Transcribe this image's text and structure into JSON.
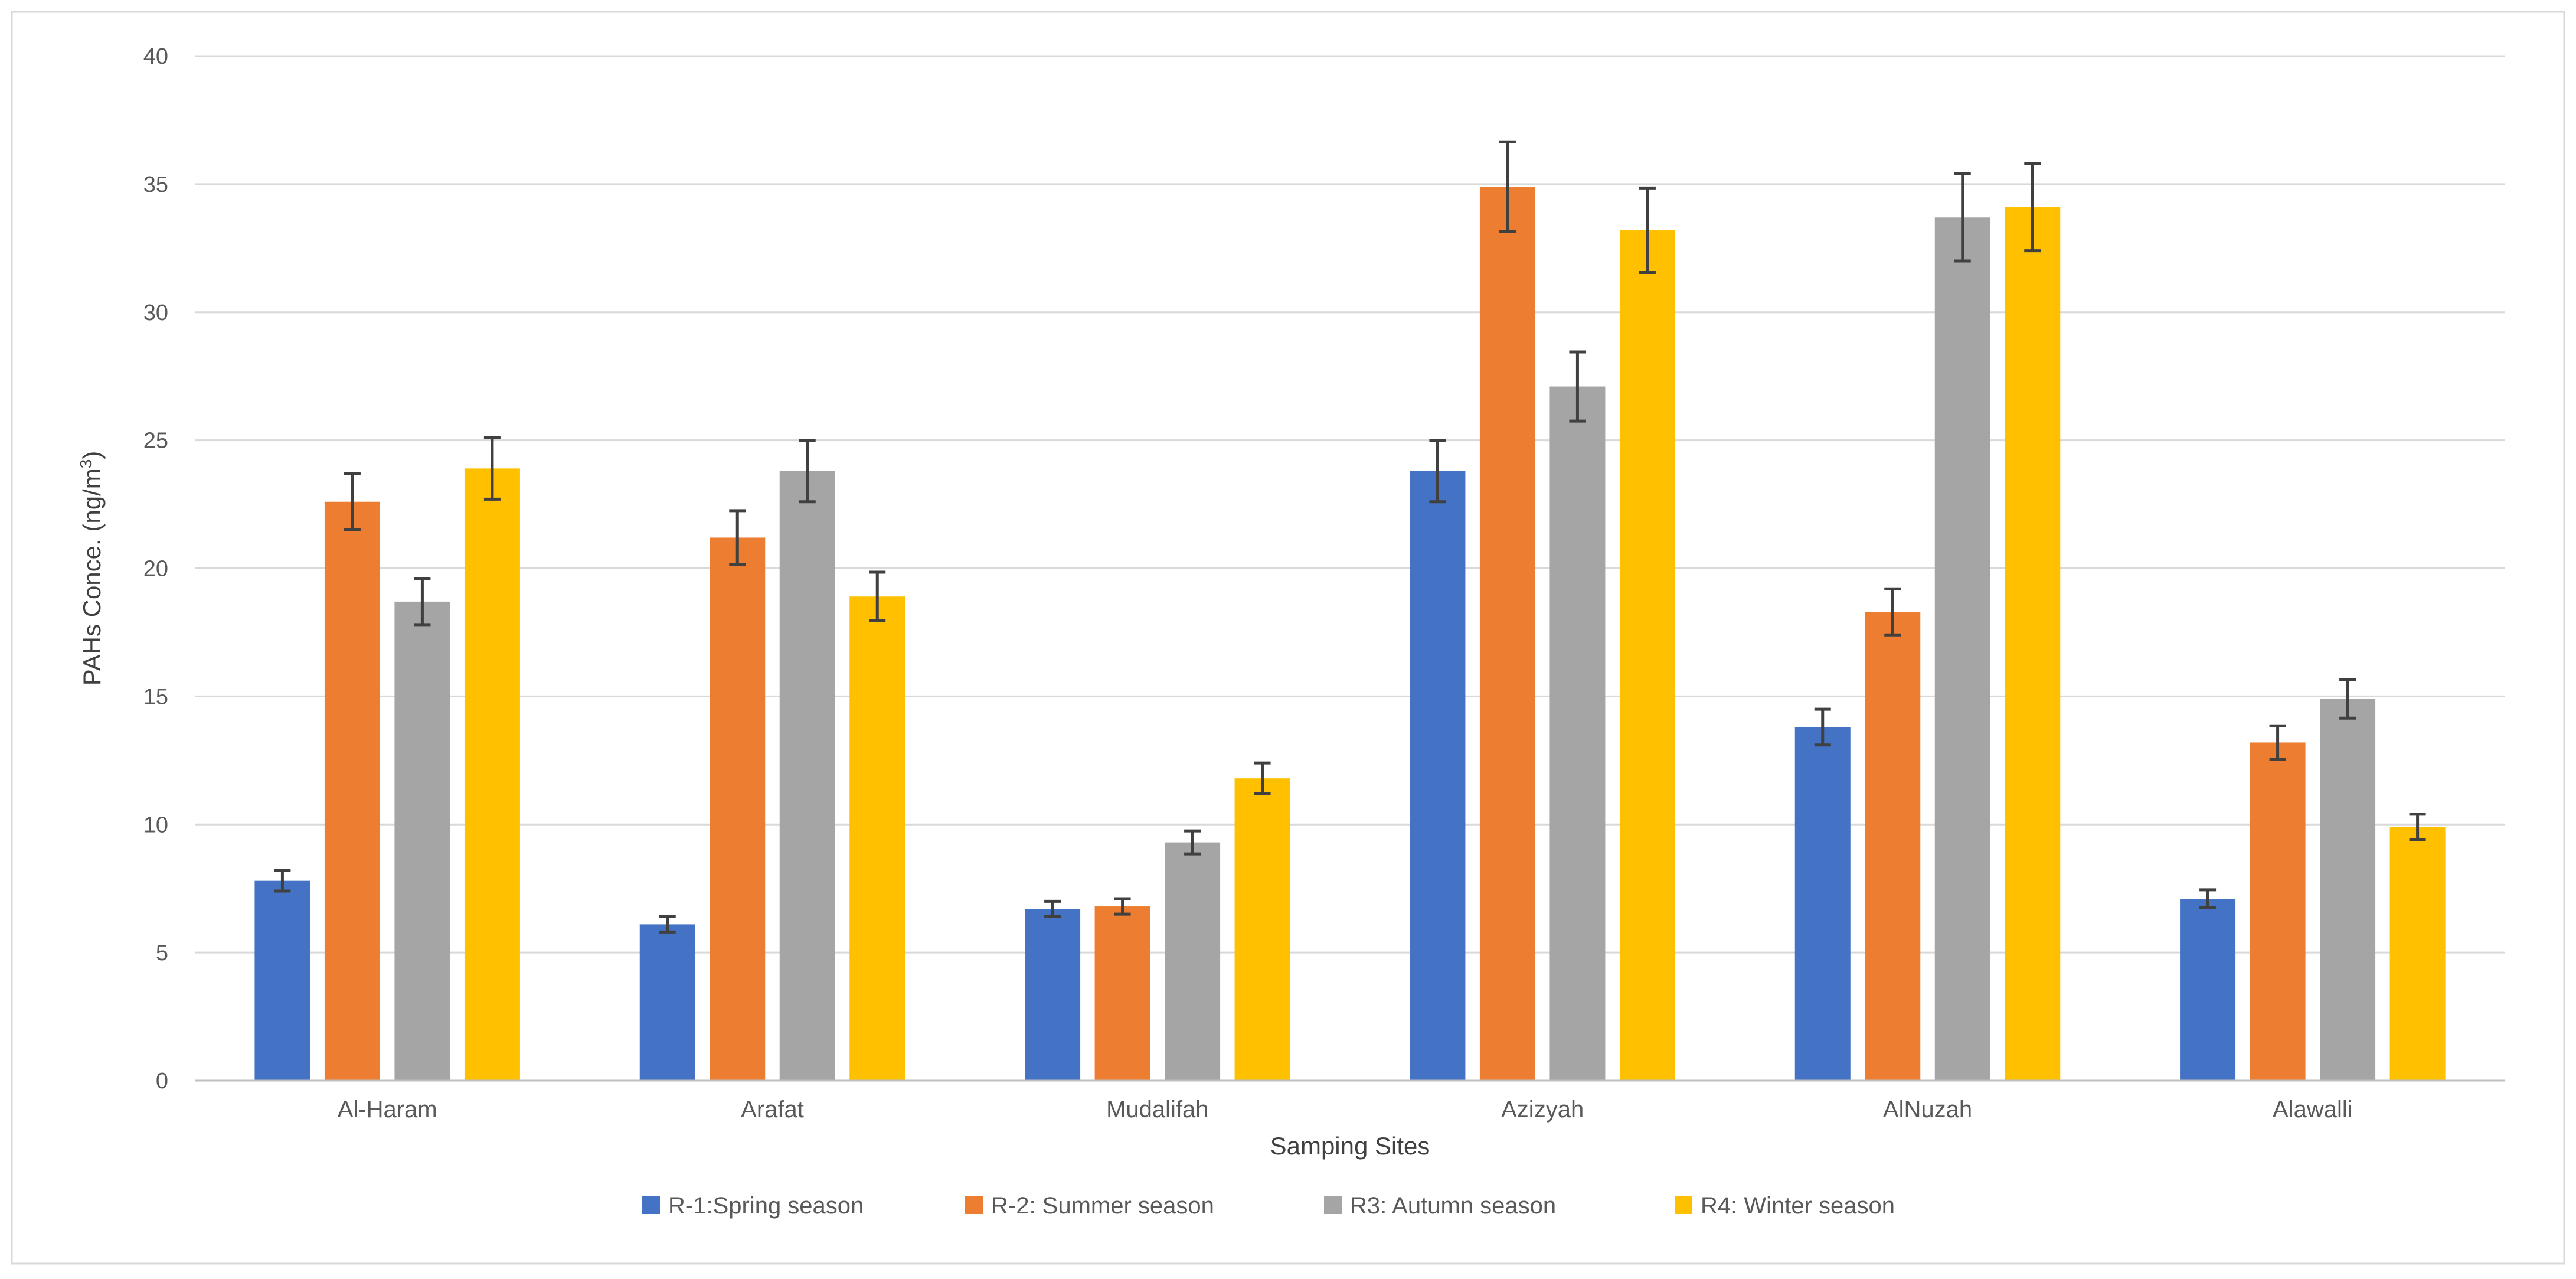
{
  "chart_data": {
    "type": "bar",
    "title": "",
    "xlabel": "Samping Sites",
    "ylabel": "PAHs Conce. (ng/m³)",
    "ylabel_base": "PAHs Conce. (ng/m",
    "ylabel_sup": "3",
    "ylabel_close": ")",
    "ylim": [
      0,
      40
    ],
    "yticks": [
      0,
      5,
      10,
      15,
      20,
      25,
      30,
      35,
      40
    ],
    "grid": true,
    "legend_position": "bottom",
    "categories": [
      "Al-Haram",
      "Arafat",
      "Mudalifah",
      "Azizyah",
      "AlNuzah",
      "Alawalli"
    ],
    "series": [
      {
        "name": "R-1:Spring season",
        "color": "#4472C4",
        "values": [
          7.8,
          6.1,
          6.7,
          23.8,
          13.8,
          7.1
        ],
        "errors": [
          0.4,
          0.3,
          0.3,
          1.2,
          0.7,
          0.35
        ]
      },
      {
        "name": "R-2: Summer season",
        "color": "#ED7D31",
        "values": [
          22.6,
          21.2,
          6.8,
          34.9,
          18.3,
          13.2
        ],
        "errors": [
          1.1,
          1.05,
          0.3,
          1.75,
          0.9,
          0.65
        ]
      },
      {
        "name": "R3: Autumn season",
        "color": "#A5A5A5",
        "values": [
          18.7,
          23.8,
          9.3,
          27.1,
          33.7,
          14.9
        ],
        "errors": [
          0.9,
          1.2,
          0.45,
          1.35,
          1.7,
          0.75
        ]
      },
      {
        "name": "R4: Winter season",
        "color": "#FFC000",
        "values": [
          23.9,
          18.9,
          11.8,
          33.2,
          34.1,
          9.9
        ],
        "errors": [
          1.2,
          0.95,
          0.6,
          1.65,
          1.7,
          0.5
        ]
      }
    ]
  }
}
